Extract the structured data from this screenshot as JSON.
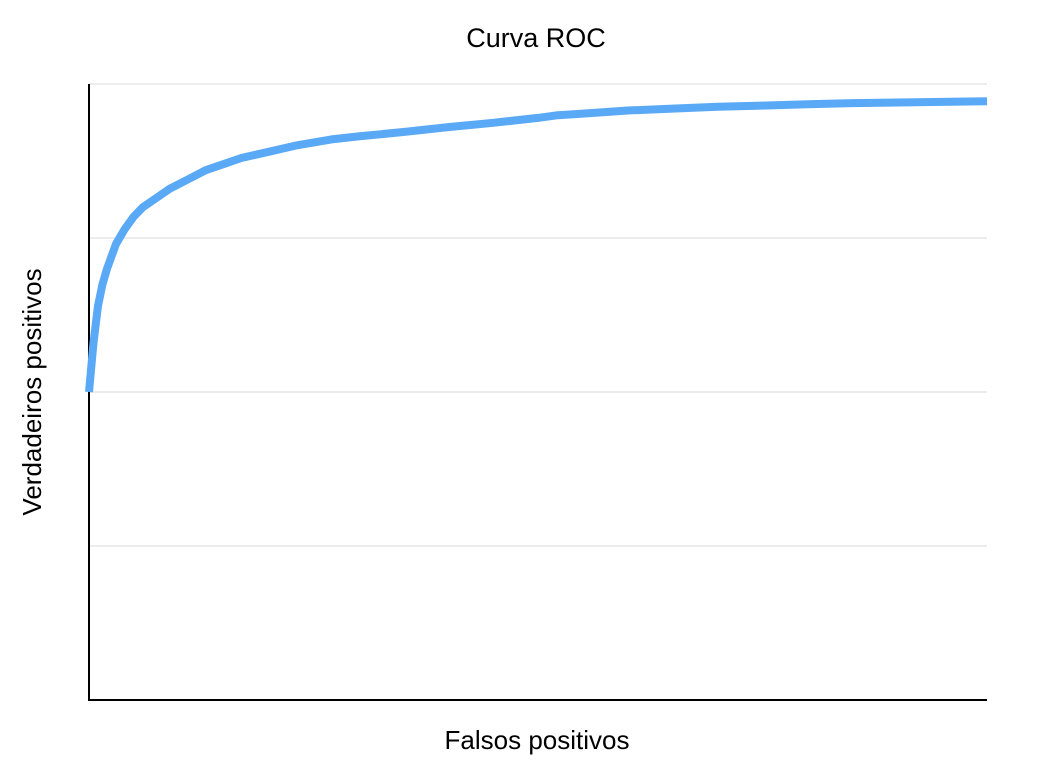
{
  "chart_data": {
    "type": "line",
    "title": "Curva ROC",
    "xlabel": "Falsos positivos",
    "ylabel": "Verdadeiros positivos",
    "xlim": [
      0,
      1
    ],
    "ylim": [
      0,
      1
    ],
    "grid": "horizontal",
    "gridlines_y": [
      0.25,
      0.5,
      0.75,
      1.0
    ],
    "tick_labels_shown": false,
    "legend": "none",
    "colors": {
      "line": "#5aa9f6",
      "grid": "#d9d9d9",
      "axis": "#000000"
    },
    "series": [
      {
        "x": [
          0.0,
          0.005,
          0.01,
          0.015,
          0.02,
          0.03,
          0.04,
          0.05,
          0.06,
          0.075,
          0.09,
          0.11,
          0.13,
          0.15,
          0.17,
          0.2,
          0.23,
          0.27,
          0.3,
          0.35,
          0.4,
          0.45,
          0.5,
          0.52,
          0.55,
          0.6,
          0.65,
          0.7,
          0.75,
          0.8,
          0.85,
          0.9,
          0.95,
          1.0
        ],
        "y": [
          0.5,
          0.58,
          0.64,
          0.675,
          0.7,
          0.74,
          0.765,
          0.785,
          0.8,
          0.815,
          0.83,
          0.845,
          0.86,
          0.87,
          0.88,
          0.89,
          0.9,
          0.91,
          0.915,
          0.922,
          0.93,
          0.937,
          0.945,
          0.949,
          0.952,
          0.957,
          0.96,
          0.963,
          0.965,
          0.967,
          0.969,
          0.97,
          0.971,
          0.972
        ]
      }
    ]
  }
}
